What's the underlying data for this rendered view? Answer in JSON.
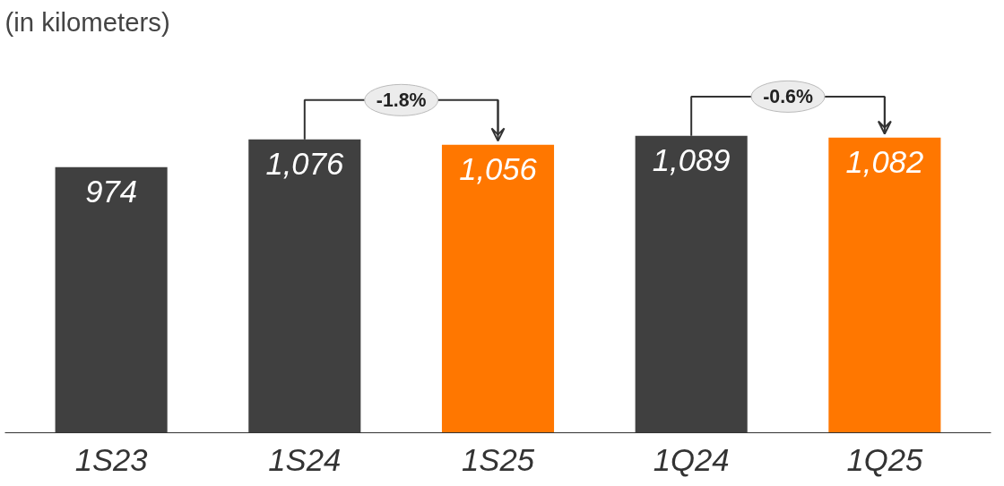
{
  "chart_data": {
    "type": "bar",
    "subtitle": "(in kilometers)",
    "categories": [
      "1S23",
      "1S24",
      "1S25",
      "1Q24",
      "1Q25"
    ],
    "values": [
      974,
      1076,
      1056,
      1089,
      1082
    ],
    "colors": [
      "#404040",
      "#404040",
      "#ff7700",
      "#404040",
      "#ff7700"
    ],
    "value_labels": [
      "974",
      "1,076",
      "1,056",
      "1,089",
      "1,082"
    ],
    "annotations": [
      "-1.8%",
      "-0.6%"
    ]
  }
}
